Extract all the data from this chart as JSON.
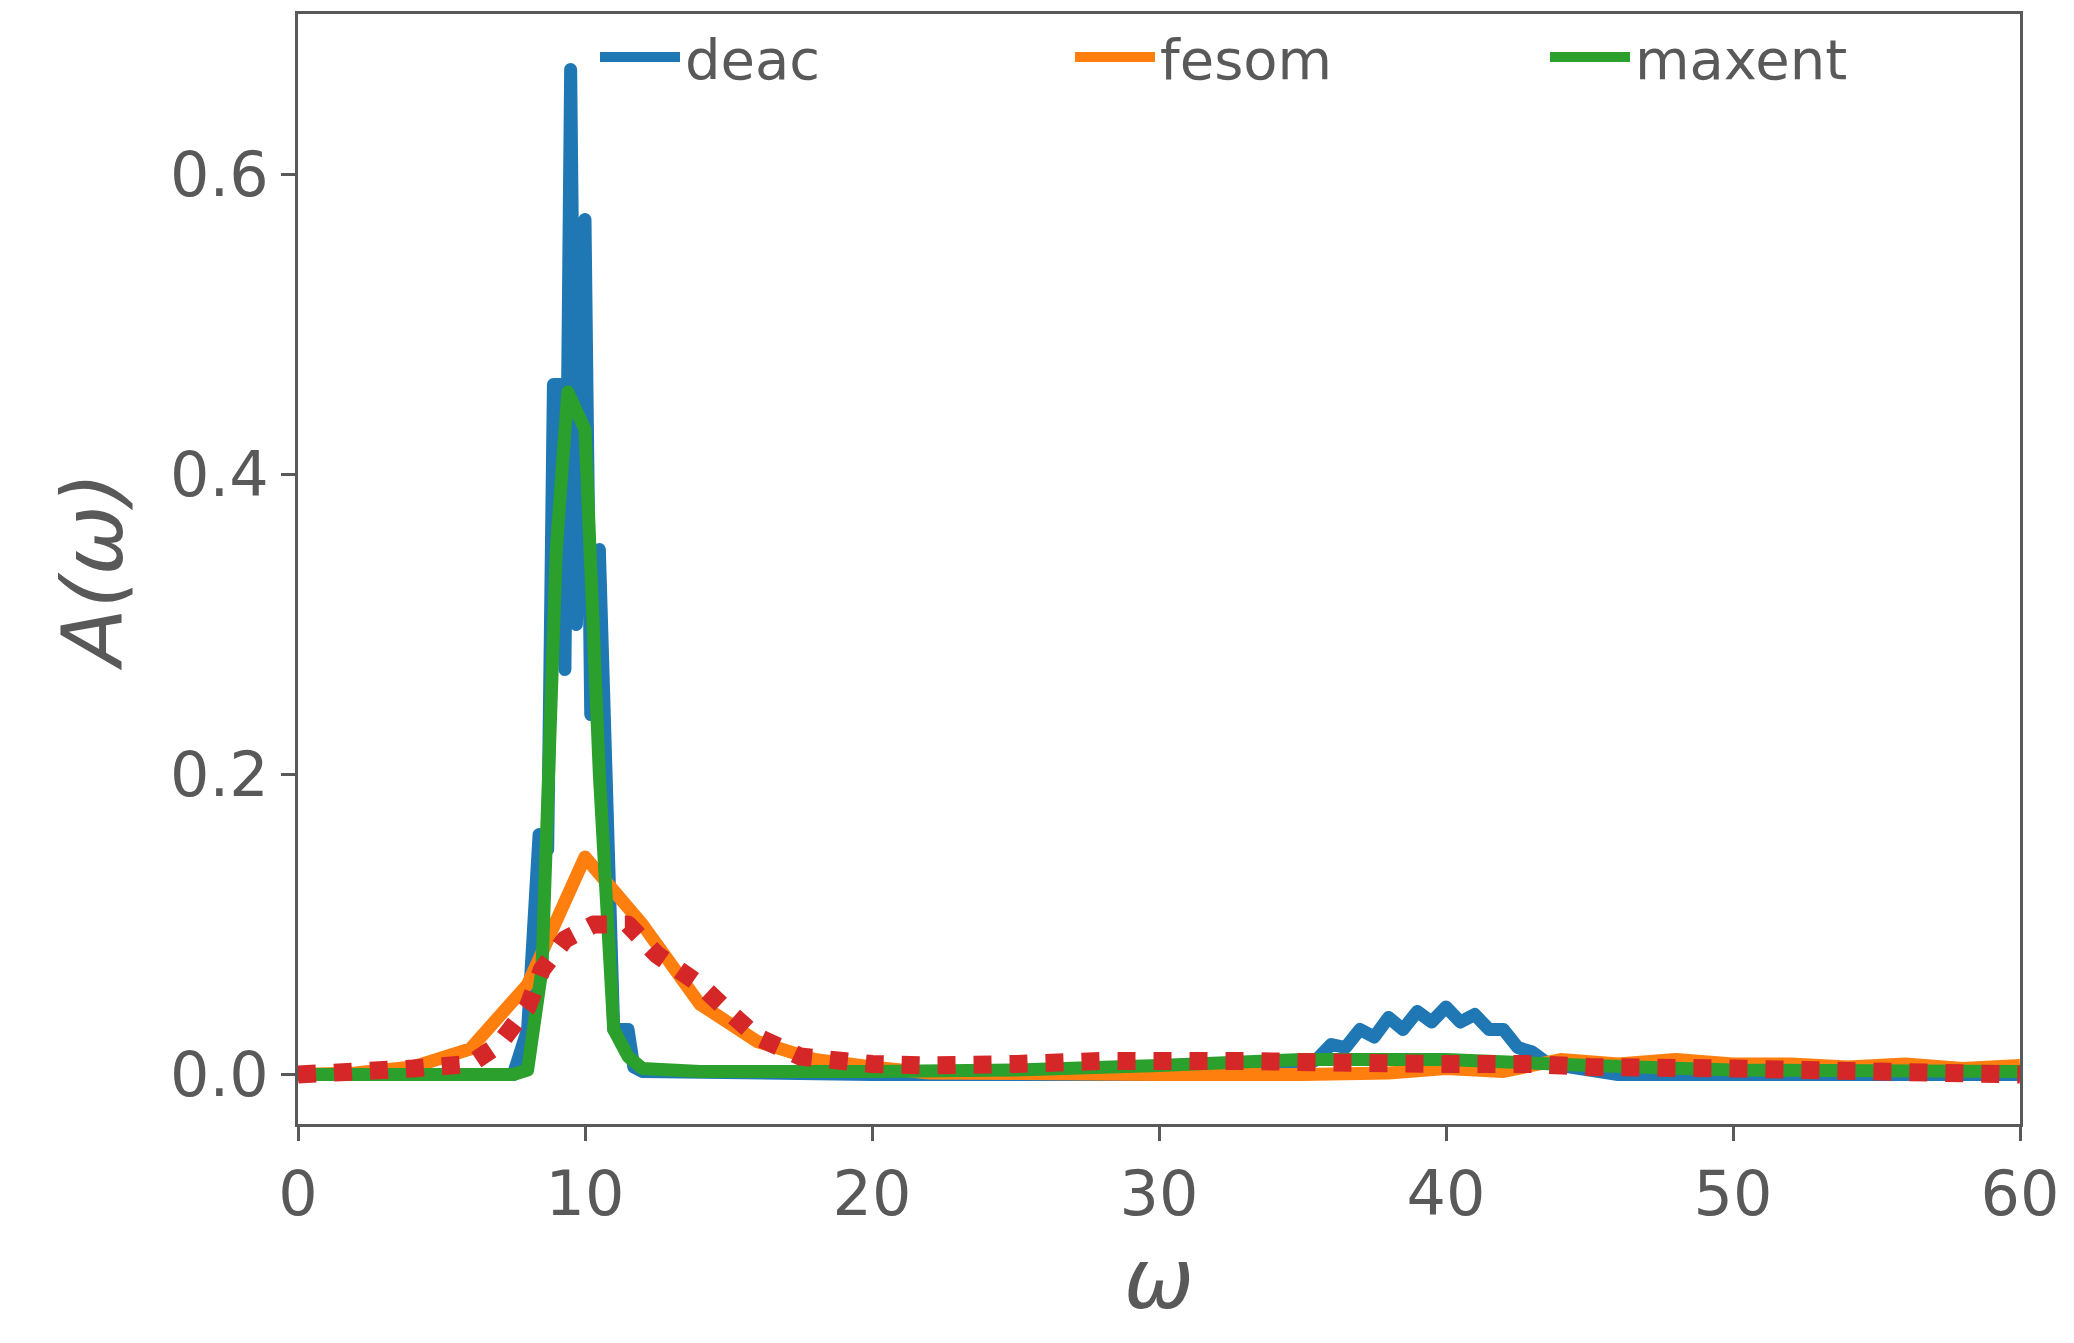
{
  "chart_data": {
    "type": "line",
    "xlabel": "ω",
    "ylabel": "A(ω)",
    "xlim": [
      0,
      60
    ],
    "ylim": [
      -0.033,
      0.707
    ],
    "xticks": [
      0,
      10,
      20,
      30,
      40,
      50,
      60
    ],
    "yticks": [
      {
        "value": 0,
        "label": "0.0"
      },
      {
        "value": 0.2,
        "label": "0.2"
      },
      {
        "value": 0.4,
        "label": "0.4"
      },
      {
        "value": 0.6,
        "label": "0.6"
      }
    ],
    "legend": "top right",
    "series": [
      {
        "name": "deac",
        "color": "#1f77b4",
        "line_style": "solid",
        "x": [
          0,
          7.5,
          8,
          8.4,
          8.7,
          8.9,
          9.2,
          9.3,
          9.5,
          9.7,
          10,
          10.2,
          10.5,
          11,
          11.5,
          11.7,
          12,
          20,
          33,
          35,
          35.5,
          36,
          36.5,
          37,
          37.5,
          38,
          38.5,
          39,
          39.5,
          40,
          40.5,
          41,
          41.5,
          42,
          42.5,
          43,
          43.5,
          44,
          45,
          46,
          60
        ],
        "values": [
          0,
          0,
          0.03,
          0.16,
          0.15,
          0.46,
          0.46,
          0.27,
          0.67,
          0.3,
          0.57,
          0.24,
          0.35,
          0.03,
          0.03,
          0.005,
          0.002,
          0,
          0,
          0.005,
          0.01,
          0.02,
          0.018,
          0.03,
          0.025,
          0.038,
          0.03,
          0.042,
          0.035,
          0.045,
          0.035,
          0.04,
          0.03,
          0.03,
          0.018,
          0.015,
          0.008,
          0.006,
          0.003,
          0,
          0
        ]
      },
      {
        "name": "fesom",
        "color": "#ff7f0e",
        "line_style": "solid",
        "x": [
          0,
          2,
          4,
          6,
          8,
          10,
          12,
          14,
          16,
          18,
          20,
          22,
          30,
          35,
          38,
          40,
          42,
          44,
          46,
          48,
          50,
          52,
          54,
          56,
          58,
          60
        ],
        "values": [
          0,
          0.001,
          0.005,
          0.017,
          0.06,
          0.145,
          0.1,
          0.047,
          0.022,
          0.01,
          0.005,
          0.001,
          0,
          0,
          0.001,
          0.004,
          0.002,
          0.01,
          0.007,
          0.01,
          0.007,
          0.007,
          0.005,
          0.007,
          0.004,
          0.006
        ]
      },
      {
        "name": "maxent",
        "color": "#2ca02c",
        "line_style": "solid",
        "x": [
          0,
          7.5,
          8,
          8.5,
          9,
          9.4,
          10,
          10.5,
          11,
          11.5,
          12,
          14,
          20,
          25,
          30,
          35,
          40,
          45,
          50,
          60
        ],
        "values": [
          0,
          0,
          0.003,
          0.07,
          0.35,
          0.455,
          0.43,
          0.2,
          0.03,
          0.012,
          0.004,
          0.002,
          0.002,
          0.003,
          0.006,
          0.01,
          0.01,
          0.006,
          0.003,
          0.002
        ]
      },
      {
        "color": "#d62728",
        "line_style": "dotted",
        "x": [
          0,
          4,
          6,
          7,
          8,
          8.5,
          9.3,
          10.3,
          11.5,
          12.5,
          14,
          15,
          16,
          17.5,
          20,
          22,
          25,
          28,
          30,
          33,
          36,
          40,
          43,
          45,
          50,
          55,
          60
        ],
        "values": [
          0,
          0.004,
          0.007,
          0.02,
          0.045,
          0.07,
          0.09,
          0.1,
          0.1,
          0.08,
          0.06,
          0.042,
          0.025,
          0.012,
          0.007,
          0.006,
          0.007,
          0.009,
          0.009,
          0.009,
          0.008,
          0.007,
          0.007,
          0.005,
          0.004,
          0.002,
          0
        ]
      }
    ]
  }
}
